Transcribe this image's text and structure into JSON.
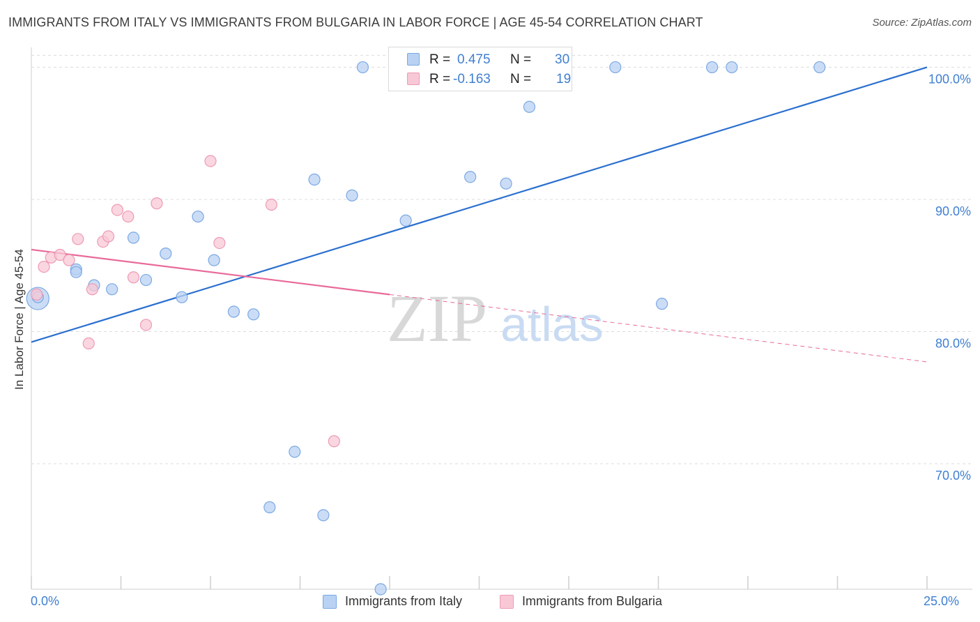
{
  "title": "IMMIGRANTS FROM ITALY VS IMMIGRANTS FROM BULGARIA IN LABOR FORCE | AGE 45-54 CORRELATION CHART",
  "source": "Source: ZipAtlas.com",
  "watermark": {
    "zip": "ZIP",
    "atlas": "atlas"
  },
  "legend_top": {
    "rows": [
      {
        "r_label": "R =",
        "r_value": "0.475",
        "n_label": "N =",
        "n_value": "30"
      },
      {
        "r_label": "R =",
        "r_value": "-0.163",
        "n_label": "N =",
        "n_value": "19"
      }
    ]
  },
  "legend_bottom": [
    {
      "label": "Immigrants from Italy"
    },
    {
      "label": "Immigrants from Bulgaria"
    }
  ],
  "colors": {
    "italy_fill": "#b9d2f3",
    "italy_stroke": "#7aa8e3",
    "italy_line": "#2a6fcf",
    "bulgaria_fill": "#f8c8d6",
    "bulgaria_stroke": "#ee9ab4",
    "bulgaria_line": "#e8699a",
    "axis_label": "#3f7fd1",
    "grid": "#dcdcdc"
  },
  "chart_data": {
    "type": "scatter",
    "title": "IMMIGRANTS FROM ITALY VS IMMIGRANTS FROM BULGARIA IN LABOR FORCE | AGE 45-54 CORRELATION CHART",
    "xlabel": "",
    "ylabel": "In Labor Force | Age 45-54",
    "xlim": [
      0,
      25
    ],
    "ylim": [
      60.5,
      101.5
    ],
    "x_tick_labels": [
      "0.0%",
      "25.0%"
    ],
    "y_ticks": [
      70,
      80,
      90,
      100
    ],
    "y_tick_labels": [
      "70.0%",
      "80.0%",
      "90.0%",
      "100.0%"
    ],
    "grid": true,
    "series": [
      {
        "name": "Immigrants from Italy",
        "R": 0.475,
        "N": 30,
        "trend": {
          "x": [
            0,
            25
          ],
          "y": [
            79.2,
            100.0
          ],
          "style": "solid"
        },
        "points": [
          {
            "x": 0.18,
            "y": 82.5,
            "large": true
          },
          {
            "x": 1.25,
            "y": 84.7
          },
          {
            "x": 1.25,
            "y": 84.5
          },
          {
            "x": 1.75,
            "y": 83.5
          },
          {
            "x": 2.25,
            "y": 83.2
          },
          {
            "x": 2.85,
            "y": 87.1
          },
          {
            "x": 3.2,
            "y": 83.9
          },
          {
            "x": 3.75,
            "y": 85.9
          },
          {
            "x": 4.2,
            "y": 82.6
          },
          {
            "x": 4.65,
            "y": 88.7
          },
          {
            "x": 5.1,
            "y": 85.4
          },
          {
            "x": 5.65,
            "y": 81.5
          },
          {
            "x": 6.2,
            "y": 81.3
          },
          {
            "x": 7.35,
            "y": 70.9
          },
          {
            "x": 7.9,
            "y": 91.5
          },
          {
            "x": 8.95,
            "y": 90.3
          },
          {
            "x": 9.25,
            "y": 100.0
          },
          {
            "x": 10.45,
            "y": 88.4
          },
          {
            "x": 12.25,
            "y": 91.7
          },
          {
            "x": 13.25,
            "y": 91.2
          },
          {
            "x": 13.9,
            "y": 97.0
          },
          {
            "x": 16.3,
            "y": 100.0
          },
          {
            "x": 17.6,
            "y": 82.1
          },
          {
            "x": 19.0,
            "y": 100.0
          },
          {
            "x": 19.55,
            "y": 100.0
          },
          {
            "x": 22.0,
            "y": 100.0
          },
          {
            "x": 6.65,
            "y": 66.7
          },
          {
            "x": 8.15,
            "y": 66.1
          },
          {
            "x": 9.75,
            "y": 60.5
          },
          {
            "x": 0.18,
            "y": 82.6
          }
        ]
      },
      {
        "name": "Immigrants from Bulgaria",
        "R": -0.163,
        "N": 19,
        "trend": {
          "x": [
            0,
            10
          ],
          "y": [
            86.2,
            82.8
          ],
          "dash_to": {
            "x": 25,
            "y": 77.7
          }
        },
        "points": [
          {
            "x": 0.15,
            "y": 82.8
          },
          {
            "x": 0.35,
            "y": 84.9
          },
          {
            "x": 0.55,
            "y": 85.6
          },
          {
            "x": 0.8,
            "y": 85.8
          },
          {
            "x": 1.05,
            "y": 85.4
          },
          {
            "x": 1.3,
            "y": 87.0
          },
          {
            "x": 1.6,
            "y": 79.1
          },
          {
            "x": 1.7,
            "y": 83.2
          },
          {
            "x": 2.0,
            "y": 86.8
          },
          {
            "x": 2.15,
            "y": 87.2
          },
          {
            "x": 2.4,
            "y": 89.2
          },
          {
            "x": 2.7,
            "y": 88.7
          },
          {
            "x": 2.85,
            "y": 84.1
          },
          {
            "x": 3.2,
            "y": 80.5
          },
          {
            "x": 3.5,
            "y": 89.7
          },
          {
            "x": 5.0,
            "y": 92.9
          },
          {
            "x": 5.25,
            "y": 86.7
          },
          {
            "x": 6.7,
            "y": 89.6
          },
          {
            "x": 8.45,
            "y": 71.7
          }
        ]
      }
    ]
  }
}
